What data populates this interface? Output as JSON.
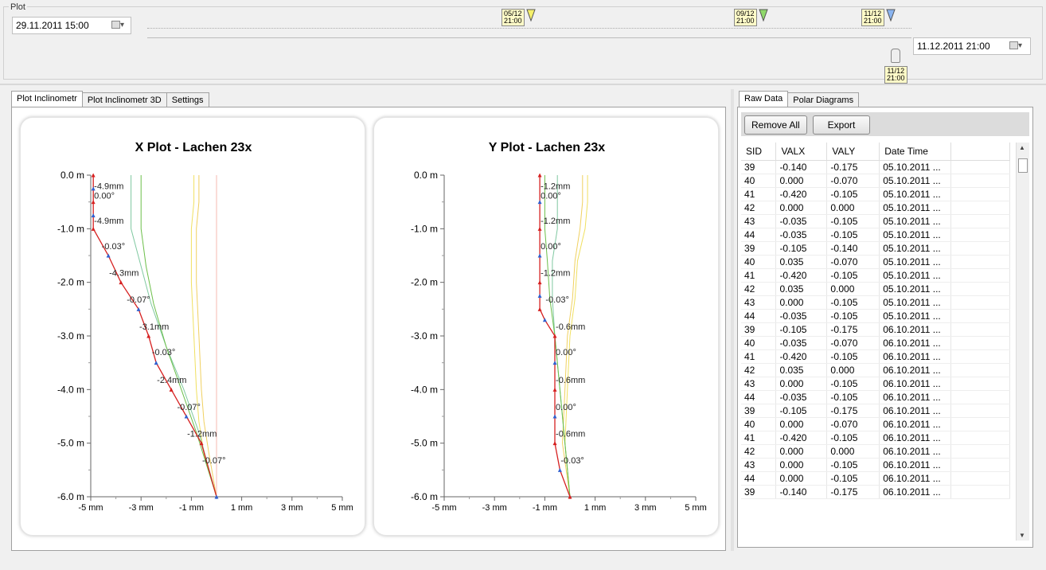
{
  "group": {
    "title": "Plot"
  },
  "range": {
    "start_date": "29.11.2011 15:00",
    "end_date": "11.12.2011 21:00",
    "markers": [
      {
        "label_line1": "05/12",
        "label_line2": "21:00",
        "color": "#f5f06a"
      },
      {
        "label_line1": "09/12",
        "label_line2": "21:00",
        "color": "#8fd86a"
      },
      {
        "label_line1": "11/12",
        "label_line2": "21:00",
        "color": "#8ab4f0"
      }
    ],
    "slider_label_line1": "11/12",
    "slider_label_line2": "21:00"
  },
  "left_tabs": [
    "Plot Inclinometr",
    "Plot Inclinometr 3D",
    "Settings"
  ],
  "right_tabs": [
    "Raw Data",
    "Polar Diagrams"
  ],
  "toolbar": {
    "remove_all": "Remove All",
    "export": "Export"
  },
  "grid": {
    "columns": [
      "SID",
      "VALX",
      "VALY",
      "Date Time"
    ],
    "rows": [
      [
        "39",
        "-0.140",
        "-0.175",
        "05.10.2011 ..."
      ],
      [
        "40",
        "0.000",
        "-0.070",
        "05.10.2011 ..."
      ],
      [
        "41",
        "-0.420",
        "-0.105",
        "05.10.2011 ..."
      ],
      [
        "42",
        "0.000",
        "0.000",
        "05.10.2011 ..."
      ],
      [
        "43",
        "-0.035",
        "-0.105",
        "05.10.2011 ..."
      ],
      [
        "44",
        "-0.035",
        "-0.105",
        "05.10.2011 ..."
      ],
      [
        "39",
        "-0.105",
        "-0.140",
        "05.10.2011 ..."
      ],
      [
        "40",
        "0.035",
        "-0.070",
        "05.10.2011 ..."
      ],
      [
        "41",
        "-0.420",
        "-0.105",
        "05.10.2011 ..."
      ],
      [
        "42",
        "0.035",
        "0.000",
        "05.10.2011 ..."
      ],
      [
        "43",
        "0.000",
        "-0.105",
        "05.10.2011 ..."
      ],
      [
        "44",
        "-0.035",
        "-0.105",
        "05.10.2011 ..."
      ],
      [
        "39",
        "-0.105",
        "-0.175",
        "06.10.2011 ..."
      ],
      [
        "40",
        "-0.035",
        "-0.070",
        "06.10.2011 ..."
      ],
      [
        "41",
        "-0.420",
        "-0.105",
        "06.10.2011 ..."
      ],
      [
        "42",
        "0.035",
        "0.000",
        "06.10.2011 ..."
      ],
      [
        "43",
        "0.000",
        "-0.105",
        "06.10.2011 ..."
      ],
      [
        "44",
        "-0.035",
        "-0.105",
        "06.10.2011 ..."
      ],
      [
        "39",
        "-0.105",
        "-0.175",
        "06.10.2011 ..."
      ],
      [
        "40",
        "0.000",
        "-0.070",
        "06.10.2011 ..."
      ],
      [
        "41",
        "-0.420",
        "-0.105",
        "06.10.2011 ..."
      ],
      [
        "42",
        "0.000",
        "0.000",
        "06.10.2011 ..."
      ],
      [
        "43",
        "0.000",
        "-0.105",
        "06.10.2011 ..."
      ],
      [
        "44",
        "0.000",
        "-0.105",
        "06.10.2011 ..."
      ],
      [
        "39",
        "-0.140",
        "-0.175",
        "06.10.2011 ..."
      ]
    ]
  },
  "chart_data": [
    {
      "type": "line",
      "title": "X Plot - Lachen 23x",
      "xlim": [
        -5,
        5
      ],
      "ylim": [
        -6,
        0
      ],
      "x_ticks": [
        "-5 mm",
        "-3 mm",
        "-1 mm",
        "1 mm",
        "3 mm",
        "5 mm"
      ],
      "y_ticks": [
        "0.0 m",
        "-1.0 m",
        "-2.0 m",
        "-3.0 m",
        "-4.0 m",
        "-5.0 m",
        "-6.0 m"
      ],
      "series": [
        {
          "color": "#d62020",
          "x": [
            -4.9,
            -4.9,
            -4.9,
            -4.9,
            -4.9,
            -4.3,
            -3.8,
            -3.1,
            -2.7,
            -2.4,
            -1.8,
            -1.2,
            -0.6,
            0
          ],
          "y": [
            0,
            -0.25,
            -0.5,
            -0.75,
            -1.0,
            -1.5,
            -2.0,
            -2.5,
            -3.0,
            -3.5,
            -4.0,
            -4.5,
            -5.0,
            -6.0
          ]
        },
        {
          "color": "#6cbf4a",
          "x": [
            -3.0,
            -3.0,
            -3.0,
            -2.8,
            -2.5,
            -2.0,
            -1.4,
            -0.8,
            0
          ],
          "y": [
            0,
            -0.5,
            -1.0,
            -1.7,
            -2.4,
            -3.2,
            -4.0,
            -4.8,
            -6.0
          ]
        },
        {
          "color": "#7fc8a0",
          "x": [
            -3.4,
            -3.4,
            -3.4,
            -3.0,
            -2.6,
            -2.0,
            -1.3,
            -0.7,
            0
          ],
          "y": [
            0,
            -0.5,
            -1.0,
            -1.7,
            -2.4,
            -3.2,
            -4.0,
            -4.8,
            -6.0
          ]
        },
        {
          "color": "#f0e060",
          "x": [
            -0.9,
            -0.9,
            -1.0,
            -1.0,
            -0.9,
            -0.8,
            -0.7,
            -0.5,
            0
          ],
          "y": [
            0,
            -0.5,
            -1.0,
            -2.0,
            -3.0,
            -4.0,
            -4.6,
            -5.2,
            -6.0
          ]
        },
        {
          "color": "#f0d060",
          "x": [
            -0.7,
            -0.7,
            -0.8,
            -0.8,
            -0.7,
            -0.6,
            -0.5,
            -0.3,
            0
          ],
          "y": [
            0,
            -0.5,
            -1.0,
            -2.0,
            -3.0,
            -4.0,
            -4.6,
            -5.2,
            -6.0
          ]
        },
        {
          "color": "#f4b8b0",
          "x": [
            0,
            0,
            0,
            0,
            0,
            0,
            0
          ],
          "y": [
            0,
            -1,
            -2,
            -3,
            -4,
            -5,
            -6
          ]
        }
      ],
      "annotations": [
        {
          "text": "-4.9mm",
          "x": -4.9,
          "y": -0.2
        },
        {
          "text": "0.00°",
          "x": -4.9,
          "y": -0.38
        },
        {
          "text": "-4.9mm",
          "x": -4.9,
          "y": -0.85
        },
        {
          "text": "-0.03°",
          "x": -4.6,
          "y": -1.32
        },
        {
          "text": "-4.3mm",
          "x": -4.3,
          "y": -1.82
        },
        {
          "text": "-0.07°",
          "x": -3.6,
          "y": -2.32
        },
        {
          "text": "-3.1mm",
          "x": -3.1,
          "y": -2.82
        },
        {
          "text": "-0.03°",
          "x": -2.6,
          "y": -3.3
        },
        {
          "text": "-2.4mm",
          "x": -2.4,
          "y": -3.82
        },
        {
          "text": "-0.07°",
          "x": -1.6,
          "y": -4.32
        },
        {
          "text": "-1.2mm",
          "x": -1.2,
          "y": -4.82
        },
        {
          "text": "-0.07°",
          "x": -0.6,
          "y": -5.32
        }
      ]
    },
    {
      "type": "line",
      "title": "Y Plot - Lachen 23x",
      "xlim": [
        -5,
        5
      ],
      "ylim": [
        -6,
        0
      ],
      "x_ticks": [
        "-5 mm",
        "-3 mm",
        "-1 mm",
        "1 mm",
        "3 mm",
        "5 mm"
      ],
      "y_ticks": [
        "0.0 m",
        "-1.0 m",
        "-2.0 m",
        "-3.0 m",
        "-4.0 m",
        "-5.0 m",
        "-6.0 m"
      ],
      "series": [
        {
          "color": "#d62020",
          "x": [
            -1.2,
            -1.2,
            -1.2,
            -1.2,
            -1.2,
            -1.2,
            -1.2,
            -1.0,
            -0.6,
            -0.6,
            -0.6,
            -0.6,
            -0.6,
            -0.4,
            0
          ],
          "y": [
            0,
            -0.5,
            -1.0,
            -1.5,
            -2.0,
            -2.25,
            -2.5,
            -2.7,
            -3.0,
            -3.5,
            -4.0,
            -4.5,
            -5.0,
            -5.5,
            -6.0
          ]
        },
        {
          "color": "#6cbf4a",
          "x": [
            -1.0,
            -1.0,
            -1.0,
            -0.9,
            -0.8,
            -0.6,
            -0.4,
            -0.2,
            0
          ],
          "y": [
            0,
            -0.5,
            -1.0,
            -1.6,
            -2.3,
            -3.0,
            -4.0,
            -5.0,
            -6.0
          ]
        },
        {
          "color": "#7fc8a0",
          "x": [
            -0.5,
            -0.5,
            -0.5,
            -0.7,
            -0.7,
            -0.6,
            -0.4,
            -0.2,
            0
          ],
          "y": [
            0,
            -0.5,
            -1.0,
            -1.6,
            -2.3,
            -3.0,
            -4.0,
            -5.0,
            -6.0
          ]
        },
        {
          "color": "#f0e060",
          "x": [
            0.7,
            0.7,
            0.6,
            0.3,
            0.2,
            0.0,
            -0.1,
            -0.2,
            0
          ],
          "y": [
            0,
            -0.5,
            -1.0,
            -1.6,
            -2.3,
            -3.0,
            -4.0,
            -5.0,
            -6.0
          ]
        },
        {
          "color": "#f0d060",
          "x": [
            0.5,
            0.5,
            0.4,
            0.2,
            0.1,
            -0.1,
            -0.2,
            -0.3,
            0
          ],
          "y": [
            0,
            -0.5,
            -1.0,
            -1.6,
            -2.3,
            -3.0,
            -4.0,
            -5.0,
            -6.0
          ]
        }
      ],
      "annotations": [
        {
          "text": "-1.2mm",
          "x": -1.2,
          "y": -0.2
        },
        {
          "text": "0.00°",
          "x": -1.2,
          "y": -0.38
        },
        {
          "text": "-1.2mm",
          "x": -1.2,
          "y": -0.85
        },
        {
          "text": "0.00°",
          "x": -1.2,
          "y": -1.32
        },
        {
          "text": "-1.2mm",
          "x": -1.2,
          "y": -1.82
        },
        {
          "text": "-0.03°",
          "x": -1.0,
          "y": -2.32
        },
        {
          "text": "-0.6mm",
          "x": -0.6,
          "y": -2.82
        },
        {
          "text": "0.00°",
          "x": -0.6,
          "y": -3.3
        },
        {
          "text": "-0.6mm",
          "x": -0.6,
          "y": -3.82
        },
        {
          "text": "0.00°",
          "x": -0.6,
          "y": -4.32
        },
        {
          "text": "-0.6mm",
          "x": -0.6,
          "y": -4.82
        },
        {
          "text": "-0.03°",
          "x": -0.4,
          "y": -5.32
        }
      ]
    }
  ]
}
